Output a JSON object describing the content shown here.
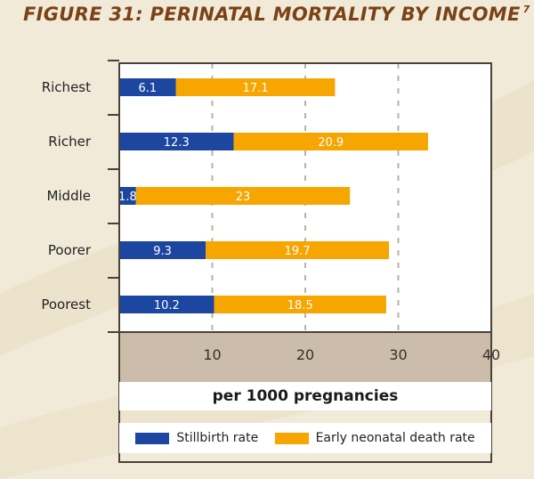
{
  "title": "FIGURE 31: PERINATAL MORTALITY BY INCOME",
  "title_ref": "7",
  "colors": {
    "stillbirth": "#1c469f",
    "neonatal": "#f7a500",
    "axis_band": "#ccbcaa",
    "plot_bg": "#ffffff",
    "frame": "#4a423a",
    "grid": "#b9b2a8"
  },
  "chart_data": {
    "type": "bar",
    "orientation": "horizontal",
    "stacked": true,
    "categories": [
      "Richest",
      "Richer",
      "Middle",
      "Poorer",
      "Poorest"
    ],
    "series": [
      {
        "name": "Stillbirth rate",
        "values": [
          6.1,
          12.3,
          1.8,
          9.3,
          10.2
        ]
      },
      {
        "name": "Early neonatal death rate",
        "values": [
          17.1,
          20.9,
          23,
          19.7,
          18.5
        ]
      }
    ],
    "value_labels": [
      [
        "6.1",
        "12.3",
        "1.8",
        "9.3",
        "10.2"
      ],
      [
        "17.1",
        "20.9",
        "23",
        "19.7",
        "18.5"
      ]
    ],
    "xticks": [
      10,
      20,
      30,
      40
    ],
    "xlim": [
      0,
      40
    ],
    "xlabel": "per 1000 pregnancies",
    "grid": "vertical dashed",
    "legend_position": "bottom"
  }
}
